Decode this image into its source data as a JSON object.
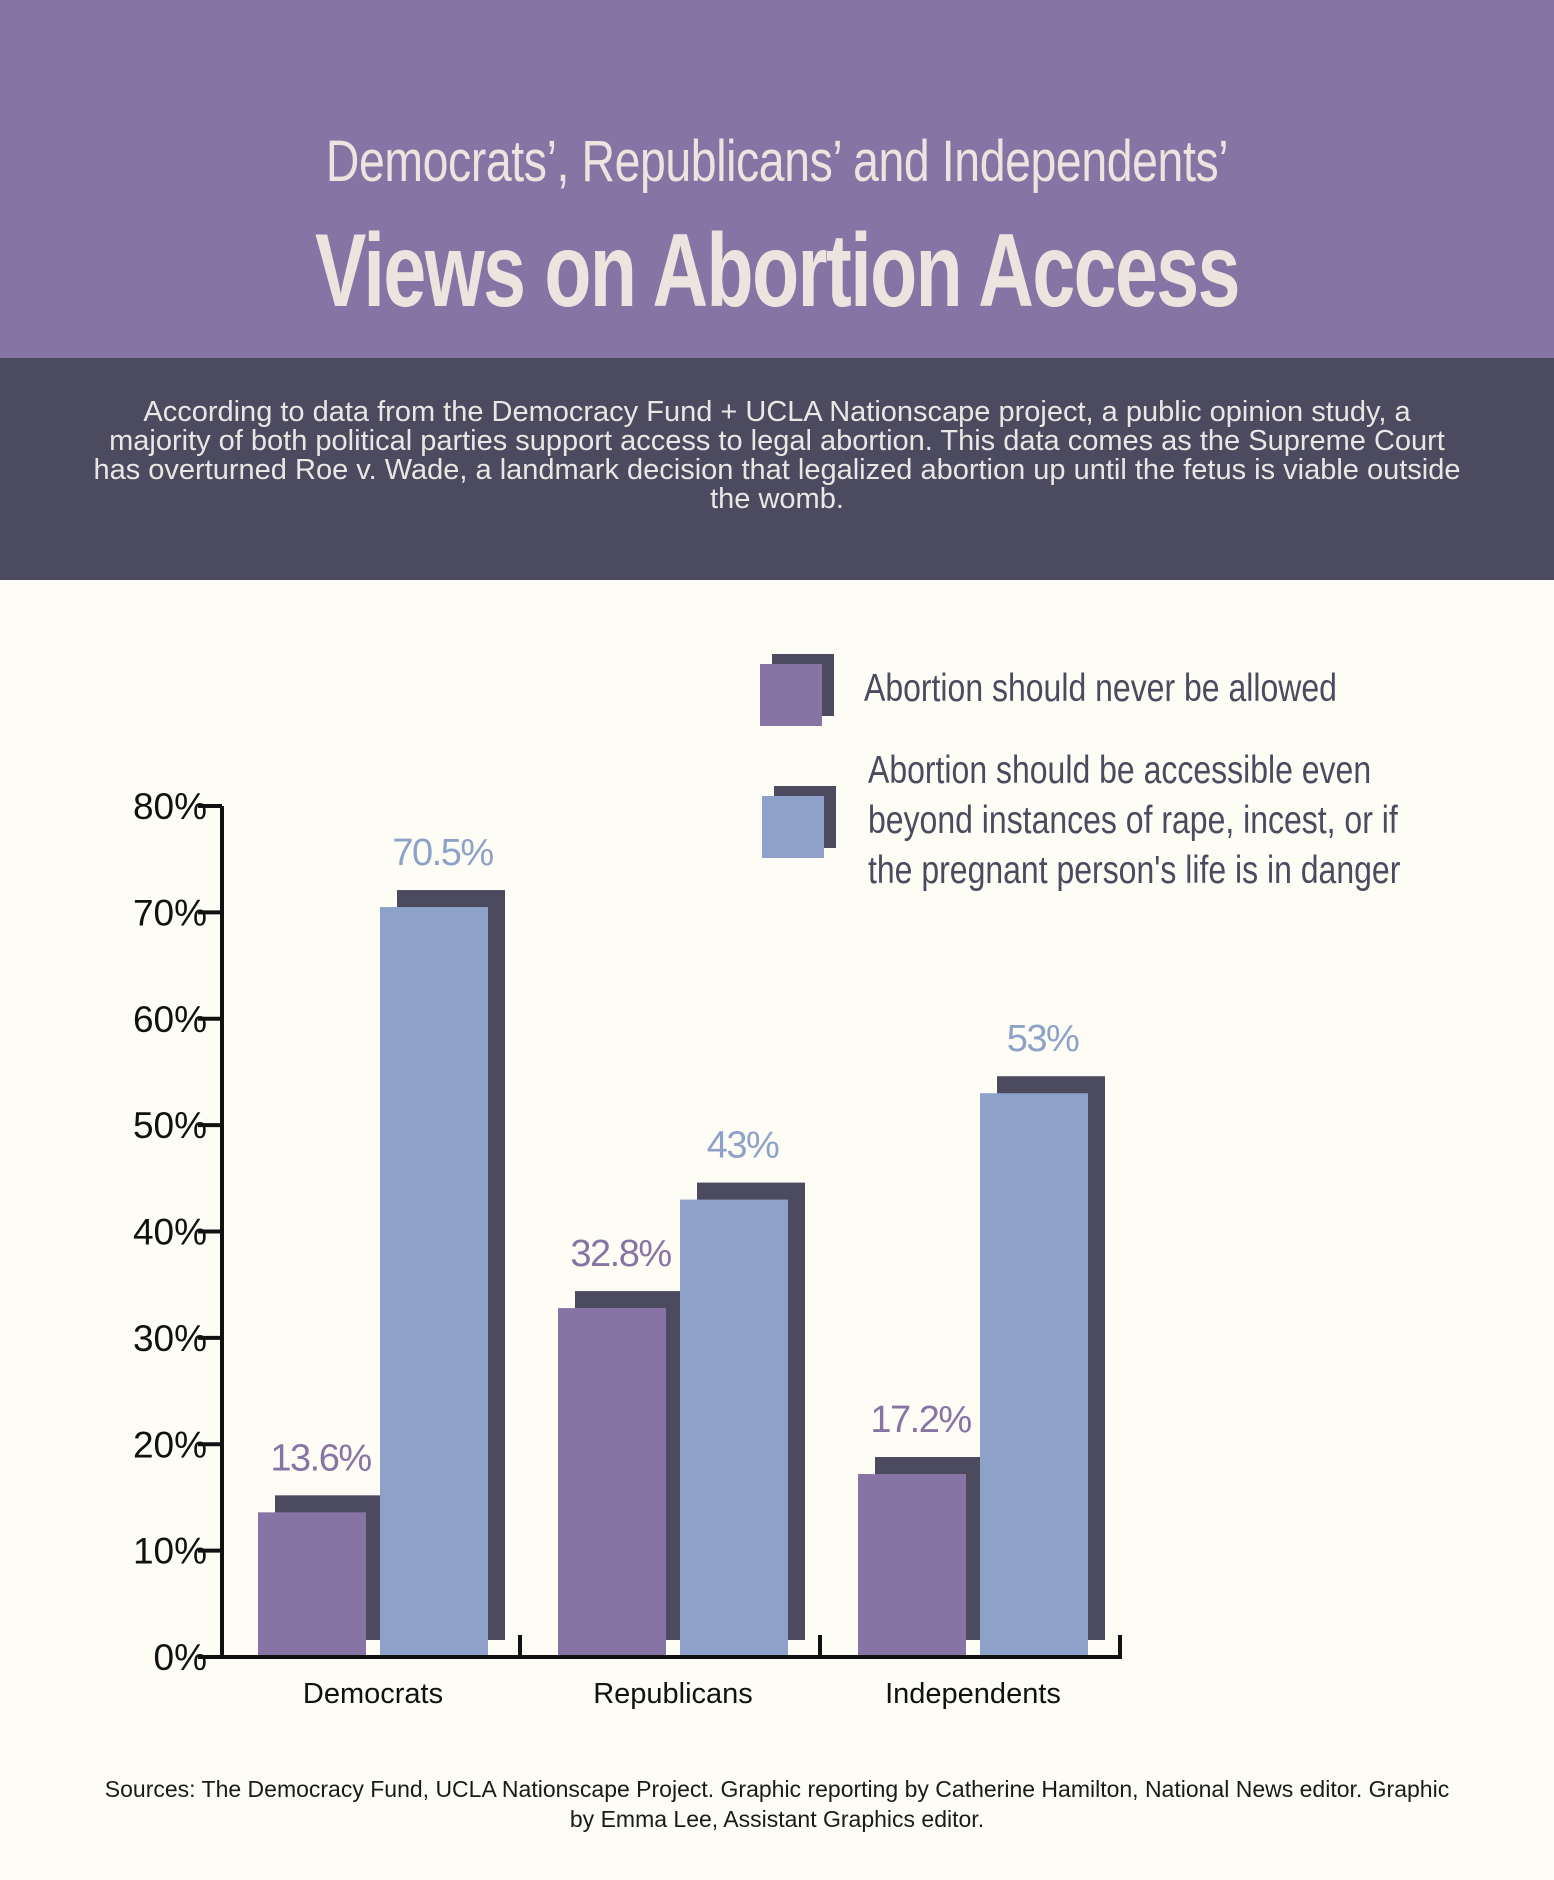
{
  "header": {
    "subtitle": "Democrats’, Republicans’ and Independents’",
    "title": "Views on Abortion Access",
    "background": "#8874a4"
  },
  "intro": {
    "text": "According to data from the Democracy Fund + UCLA Nationscape project, a public opinion study, a majority of both political parties support access to legal abortion. This data comes as the Supreme Court has overturned Roe v. Wade, a landmark decision that legalized abortion up until the fetus is viable outside the womb.",
    "background": "#4b4a5e"
  },
  "colors": {
    "never": "#8874a4",
    "accessible": "#8ea2c9",
    "shadow": "#4b4a5e",
    "axis": "#111111"
  },
  "chart_data": {
    "type": "bar",
    "categories": [
      "Democrats",
      "Republicans",
      "Independents"
    ],
    "series": [
      {
        "name": "Abortion should never be allowed",
        "values": [
          13.6,
          32.8,
          17.2
        ],
        "labels": [
          "13.6%",
          "32.8%",
          "17.2%"
        ]
      },
      {
        "name": "Abortion should be accessible even beyond instances of rape, incest, or if the pregnant person's life is in danger",
        "values": [
          70.5,
          43,
          53
        ],
        "labels": [
          "70.5%",
          "43%",
          "53%"
        ]
      }
    ],
    "yticks": [
      "0%",
      "10%",
      "20%",
      "30%",
      "40%",
      "50%",
      "60%",
      "70%",
      "80%"
    ],
    "ylim": [
      0,
      80
    ],
    "legend": {
      "position": "top-right",
      "lines": [
        [
          "Abortion should never be allowed"
        ],
        [
          "Abortion should be accessible even",
          "beyond instances of rape, incest, or if",
          "the pregnant person's life is in danger"
        ]
      ]
    },
    "title": "Views on Abortion Access",
    "xlabel": "",
    "ylabel": ""
  },
  "sources": "Sources: The Democracy Fund, UCLA Nationscape Project. Graphic reporting by Catherine Hamilton, National News editor. Graphic by Emma Lee, Assistant Graphics editor."
}
